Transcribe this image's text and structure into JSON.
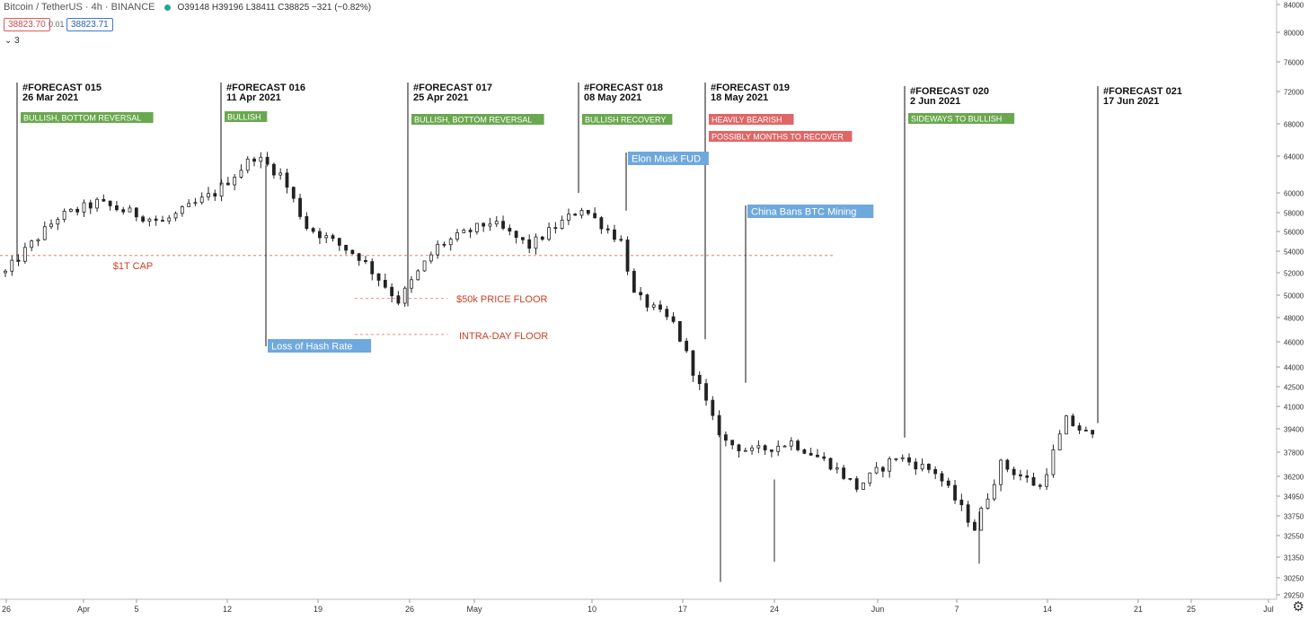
{
  "header": {
    "symbol": "Bitcoin / TetherUS · 4h · BINANCE",
    "ohlc": "O39148 H39196 L38411 C38825 −321 (−0.82%)",
    "sell_price": "38823.70",
    "spread": "0.01",
    "buy_price": "38823.71",
    "indicator_count": "3"
  },
  "colors": {
    "green_label": "#6aa84f",
    "red_label": "#e06666",
    "blue_label": "#6fa8dc",
    "red_text": "#cc4125",
    "candle": "#222222"
  },
  "chart_data": {
    "type": "candlestick",
    "y_axis_ticks": [
      84000,
      80000,
      76000,
      72000,
      68000,
      64000,
      60000,
      58000,
      56000,
      54000,
      52000,
      50000,
      48000,
      46000,
      44000,
      42500,
      41000,
      39400,
      37800,
      36200,
      34950,
      33750,
      32550,
      31350,
      30250,
      29250
    ],
    "x_axis_ticks": [
      "26",
      "Apr",
      "5",
      "12",
      "19",
      "26",
      "May",
      "10",
      "17",
      "24",
      "Jun",
      "7",
      "14",
      "21",
      "25",
      "Jul"
    ],
    "ylim": [
      29250,
      84000
    ],
    "price_anchors": [
      {
        "t": "2021-03-26",
        "v": 52000
      },
      {
        "t": "2021-03-30",
        "v": 57500
      },
      {
        "t": "2021-04-02",
        "v": 59000
      },
      {
        "t": "2021-04-07",
        "v": 57000
      },
      {
        "t": "2021-04-11",
        "v": 60000
      },
      {
        "t": "2021-04-14",
        "v": 64000
      },
      {
        "t": "2021-04-16",
        "v": 62000
      },
      {
        "t": "2021-04-18",
        "v": 56500
      },
      {
        "t": "2021-04-22",
        "v": 53500
      },
      {
        "t": "2021-04-25",
        "v": 49500
      },
      {
        "t": "2021-04-28",
        "v": 54500
      },
      {
        "t": "2021-05-02",
        "v": 57000
      },
      {
        "t": "2021-05-05",
        "v": 54500
      },
      {
        "t": "2021-05-09",
        "v": 58500
      },
      {
        "t": "2021-05-12",
        "v": 55000
      },
      {
        "t": "2021-05-13",
        "v": 50000
      },
      {
        "t": "2021-05-16",
        "v": 47500
      },
      {
        "t": "2021-05-19",
        "v": 40000
      },
      {
        "t": "2021-05-20",
        "v": 38500
      },
      {
        "t": "2021-05-22",
        "v": 37800
      },
      {
        "t": "2021-05-25",
        "v": 38500
      },
      {
        "t": "2021-05-28",
        "v": 37000
      },
      {
        "t": "2021-05-30",
        "v": 35500
      },
      {
        "t": "2021-06-02",
        "v": 37500
      },
      {
        "t": "2021-06-05",
        "v": 36500
      },
      {
        "t": "2021-06-08",
        "v": 33000
      },
      {
        "t": "2021-06-10",
        "v": 37000
      },
      {
        "t": "2021-06-13",
        "v": 35500
      },
      {
        "t": "2021-06-15",
        "v": 40000
      },
      {
        "t": "2021-06-17",
        "v": 38800
      }
    ]
  },
  "annotations": {
    "forecasts": [
      {
        "title": "#FORECAST 015",
        "date": "26 Mar 2021",
        "labels": [
          {
            "text": "BULLISH, BOTTOM REVERSAL",
            "color": "green"
          }
        ]
      },
      {
        "title": "#FORECAST 016",
        "date": "11 Apr 2021",
        "labels": [
          {
            "text": "BULLISH",
            "color": "green"
          }
        ]
      },
      {
        "title": "#FORECAST 017",
        "date": "25 Apr 2021",
        "labels": [
          {
            "text": "BULLISH, BOTTOM REVERSAL",
            "color": "green"
          }
        ]
      },
      {
        "title": "#FORECAST 018",
        "date": "08 May 2021",
        "labels": [
          {
            "text": "BULLISH RECOVERY",
            "color": "green"
          }
        ]
      },
      {
        "title": "#FORECAST 019",
        "date": "18 May 2021",
        "labels": [
          {
            "text": "HEAVILY BEARISH",
            "color": "red"
          },
          {
            "text": "POSSIBLY MONTHS TO RECOVER",
            "color": "red"
          }
        ]
      },
      {
        "title": "#FORECAST 020",
        "date": "2 Jun 2021",
        "labels": [
          {
            "text": "SIDEWAYS TO BULLISH",
            "color": "green"
          }
        ]
      },
      {
        "title": "#FORECAST 021",
        "date": "17 Jun 2021",
        "labels": []
      }
    ],
    "events": [
      {
        "text": "Elon Musk FUD"
      },
      {
        "text": "China Bans BTC Mining"
      },
      {
        "text": "Loss of Hash Rate"
      }
    ],
    "levels": [
      {
        "text": "$1T CAP",
        "value": 53600
      },
      {
        "text": "$50k PRICE FLOOR",
        "value": 49700
      },
      {
        "text": "INTRA-DAY FLOOR",
        "value": 46600
      }
    ]
  }
}
